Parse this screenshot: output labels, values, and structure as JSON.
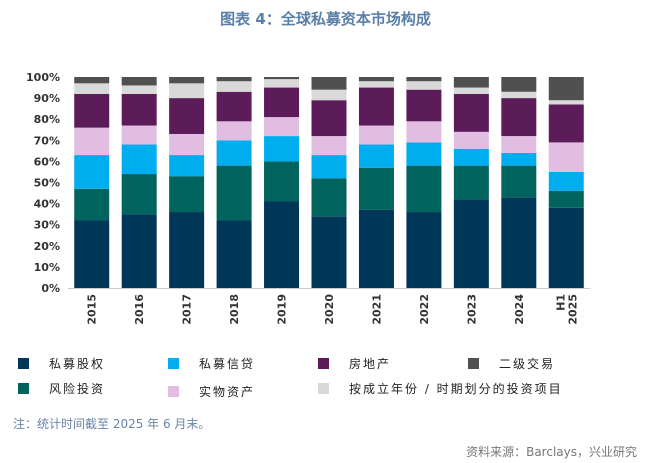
{
  "chart_data": {
    "type": "bar",
    "stacked": true,
    "title": "图表 4：全球私募资本市场构成",
    "categories": [
      "2015",
      "2016",
      "2017",
      "2018",
      "2019",
      "2020",
      "2021",
      "2022",
      "2023",
      "2024",
      "H1 2025"
    ],
    "yticks": [
      "0%",
      "10%",
      "20%",
      "30%",
      "40%",
      "50%",
      "60%",
      "70%",
      "80%",
      "90%",
      "100%"
    ],
    "ylim": [
      0,
      100
    ],
    "grid": false,
    "legend_placement": "bottom",
    "series": [
      {
        "name": "私募股权",
        "color": "#003658",
        "values": [
          32,
          35,
          36,
          32,
          41,
          34,
          37,
          36,
          42,
          43,
          38
        ]
      },
      {
        "name": "风险投资",
        "color": "#00635e",
        "values": [
          15,
          19,
          17,
          26,
          19,
          18,
          20,
          22,
          16,
          15,
          8
        ]
      },
      {
        "name": "私募信贷",
        "color": "#00aeef",
        "values": [
          16,
          14,
          10,
          12,
          12,
          11,
          11,
          11,
          8,
          6,
          9
        ]
      },
      {
        "name": "实物资产",
        "color": "#e2bde2",
        "values": [
          13,
          9,
          10,
          9,
          9,
          9,
          9,
          10,
          8,
          8,
          14
        ]
      },
      {
        "name": "房地产",
        "color": "#5c1c5a",
        "values": [
          16,
          15,
          17,
          14,
          14,
          17,
          18,
          15,
          18,
          18,
          18
        ]
      },
      {
        "name": "按成立年份 / 时期划分的投资项目",
        "color": "#d9d9d9",
        "values": [
          5,
          4,
          7,
          5,
          4,
          5,
          3,
          4,
          3,
          3,
          2
        ]
      },
      {
        "name": "二级交易",
        "color": "#505050",
        "values": [
          3,
          4,
          3,
          2,
          1,
          6,
          2,
          2,
          5,
          7,
          11
        ]
      }
    ]
  },
  "legend_order": [
    0,
    2,
    4,
    6,
    1,
    3,
    5
  ],
  "note": "注：统计时间截至 2025 年 6 月末。",
  "source": "资料来源：Barclays，兴业研究"
}
